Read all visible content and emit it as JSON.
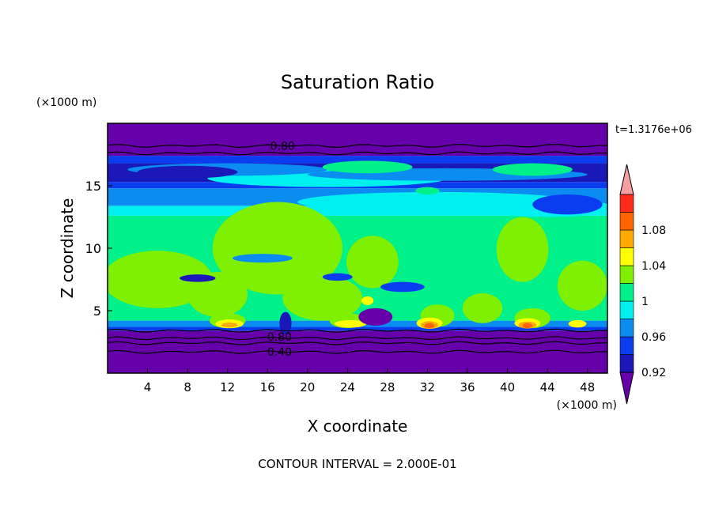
{
  "chart_data": {
    "type": "heatmap",
    "title": "Saturation Ratio",
    "xlabel": "X coordinate",
    "ylabel": "Z coordinate",
    "x_unit": "(×1000 m)",
    "y_unit": "(×1000 m)",
    "time_label": "t=1.3176e+06",
    "footer": "CONTOUR INTERVAL = 2.000E-01",
    "xlim": [
      0,
      50
    ],
    "ylim": [
      0,
      20
    ],
    "x_ticks": [
      4,
      8,
      12,
      16,
      20,
      24,
      28,
      32,
      36,
      40,
      44,
      48
    ],
    "y_ticks": [
      5,
      10,
      15
    ],
    "colorbar": {
      "levels": [
        0.92,
        0.94,
        0.96,
        0.98,
        1.0,
        1.02,
        1.04,
        1.06,
        1.08,
        1.1
      ],
      "tick_labels": [
        "0.92",
        "0.96",
        "1",
        "1.04",
        "1.08"
      ],
      "tick_values": [
        0.92,
        0.96,
        1.0,
        1.04,
        1.08
      ],
      "colors": [
        "#6600aa",
        "#1a18b8",
        "#0a3cf0",
        "#0a8cf0",
        "#00f0f0",
        "#00f08a",
        "#7ef000",
        "#ffff00",
        "#ffaa00",
        "#ff6400",
        "#ff2a1a",
        "#f4a0a0"
      ],
      "extend": "both"
    },
    "contour_labels": [
      {
        "text": "0.80",
        "x": 17.5,
        "y": 18.2
      },
      {
        "text": "0.80",
        "x": 17.2,
        "y": 2.9
      },
      {
        "text": "0.40",
        "x": 17.2,
        "y": 1.7
      }
    ],
    "colors": {
      "below": "#6600aa",
      "band_dark": "#1a18b8",
      "band_blue": "#0a3cf0",
      "band_lightblue": "#0a8cf0",
      "band_cyan": "#00f0f0",
      "band_green": "#00f08a",
      "band_lime": "#7ef000",
      "band_yellow": "#ffff00",
      "band_orange": "#ffaa00",
      "band_red": "#ff6400"
    }
  }
}
